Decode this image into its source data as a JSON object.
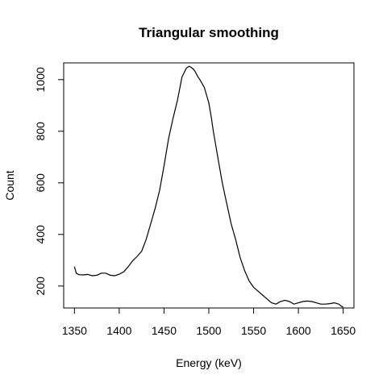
{
  "chart_data": {
    "type": "line",
    "title": "Triangular smoothing",
    "xlabel": "Energy (keV)",
    "ylabel": "Count",
    "xlim": [
      1338,
      1662
    ],
    "ylim": [
      115,
      1065
    ],
    "x_ticks": [
      1350,
      1400,
      1450,
      1500,
      1550,
      1600,
      1650
    ],
    "y_ticks": [
      200,
      400,
      600,
      800,
      1000
    ],
    "grid": false,
    "series": [
      {
        "color": "#000000",
        "x": [
          1350,
          1352,
          1355,
          1360,
          1365,
          1370,
          1375,
          1380,
          1385,
          1390,
          1395,
          1400,
          1405,
          1410,
          1415,
          1420,
          1425,
          1430,
          1435,
          1440,
          1445,
          1450,
          1455,
          1460,
          1465,
          1470,
          1475,
          1478,
          1480,
          1483,
          1485,
          1488,
          1490,
          1495,
          1500,
          1503,
          1505,
          1510,
          1515,
          1520,
          1525,
          1530,
          1535,
          1540,
          1545,
          1550,
          1555,
          1560,
          1565,
          1570,
          1575,
          1580,
          1585,
          1590,
          1595,
          1600,
          1605,
          1610,
          1615,
          1620,
          1625,
          1630,
          1635,
          1640,
          1645,
          1648,
          1650
        ],
        "y": [
          275,
          250,
          244,
          243,
          245,
          240,
          242,
          250,
          250,
          242,
          240,
          246,
          255,
          275,
          298,
          315,
          335,
          380,
          440,
          500,
          570,
          665,
          770,
          850,
          920,
          1010,
          1045,
          1052,
          1048,
          1040,
          1030,
          1010,
          1000,
          970,
          910,
          850,
          800,
          700,
          600,
          520,
          440,
          380,
          310,
          260,
          220,
          195,
          180,
          165,
          150,
          135,
          130,
          140,
          145,
          140,
          130,
          135,
          140,
          142,
          140,
          135,
          130,
          130,
          132,
          135,
          130,
          122,
          118
        ]
      }
    ]
  }
}
